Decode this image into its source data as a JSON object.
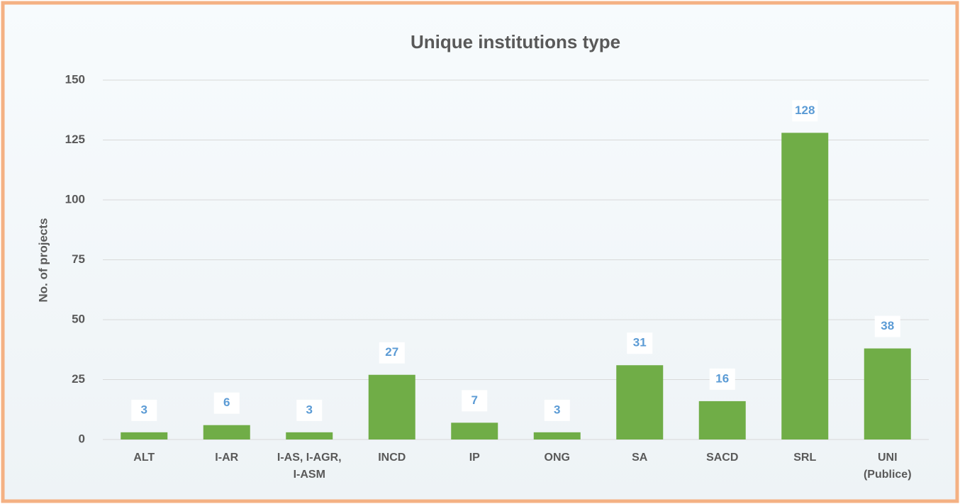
{
  "chart_data": {
    "type": "bar",
    "title": "Unique institutions type",
    "y_label": "No. of projects",
    "categories": [
      "ALT",
      "I-AR",
      "I-AS, I-AGR,\nI-ASM",
      "INCD",
      "IP",
      "ONG",
      "SA",
      "SACD",
      "SRL",
      "UNI\n(Publice)"
    ],
    "values": [
      3,
      6,
      3,
      27,
      7,
      3,
      31,
      16,
      128,
      38
    ],
    "color": "#70ad47",
    "label_color": "#5b9bd5",
    "ylim": [
      0,
      150
    ],
    "yticks": [
      0,
      25,
      50,
      75,
      100,
      125,
      150
    ],
    "grid": true
  }
}
